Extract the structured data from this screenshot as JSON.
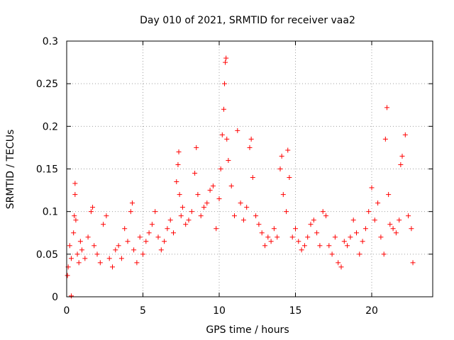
{
  "chart_data": {
    "type": "scatter",
    "title": "Day 010 of 2021, SRMTID for receiver vaa2",
    "xlabel": "GPS time / hours",
    "ylabel": "SRMTID / TECUs",
    "xlim": [
      0,
      24
    ],
    "ylim": [
      0,
      0.3
    ],
    "grid": true,
    "x_ticks": [
      0,
      5,
      10,
      15,
      20
    ],
    "x_tick_labels": [
      "0",
      "5",
      "10",
      "15",
      "20"
    ],
    "y_ticks": [
      0,
      0.05,
      0.1,
      0.15,
      0.2,
      0.25,
      0.3
    ],
    "y_tick_labels": [
      "0",
      "0.05",
      "0.1",
      "0.15",
      "0.2",
      "0.25",
      "0.3"
    ],
    "marker": "plus",
    "color": "#ff0000",
    "series": [
      {
        "name": "SRMTID",
        "points": [
          [
            0.05,
            0.025
          ],
          [
            0.1,
            0.035
          ],
          [
            0.2,
            0.06
          ],
          [
            0.3,
            0.045
          ],
          [
            0.3,
            0.001
          ],
          [
            0.45,
            0.075
          ],
          [
            0.5,
            0.095
          ],
          [
            0.55,
            0.12
          ],
          [
            0.55,
            0.133
          ],
          [
            0.6,
            0.09
          ],
          [
            0.7,
            0.05
          ],
          [
            0.8,
            0.04
          ],
          [
            0.9,
            0.065
          ],
          [
            1.0,
            0.055
          ],
          [
            1.2,
            0.045
          ],
          [
            1.4,
            0.07
          ],
          [
            1.6,
            0.1
          ],
          [
            1.7,
            0.105
          ],
          [
            1.8,
            0.06
          ],
          [
            2.0,
            0.05
          ],
          [
            2.2,
            0.04
          ],
          [
            2.4,
            0.085
          ],
          [
            2.6,
            0.095
          ],
          [
            2.8,
            0.045
          ],
          [
            3.0,
            0.035
          ],
          [
            3.2,
            0.055
          ],
          [
            3.4,
            0.06
          ],
          [
            3.6,
            0.045
          ],
          [
            3.8,
            0.08
          ],
          [
            4.0,
            0.065
          ],
          [
            4.2,
            0.1
          ],
          [
            4.3,
            0.11
          ],
          [
            4.4,
            0.055
          ],
          [
            4.6,
            0.04
          ],
          [
            4.8,
            0.07
          ],
          [
            5.0,
            0.05
          ],
          [
            5.2,
            0.065
          ],
          [
            5.4,
            0.075
          ],
          [
            5.6,
            0.085
          ],
          [
            5.8,
            0.1
          ],
          [
            6.0,
            0.07
          ],
          [
            6.2,
            0.055
          ],
          [
            6.4,
            0.065
          ],
          [
            6.6,
            0.08
          ],
          [
            6.8,
            0.09
          ],
          [
            7.0,
            0.075
          ],
          [
            7.2,
            0.135
          ],
          [
            7.3,
            0.155
          ],
          [
            7.35,
            0.17
          ],
          [
            7.4,
            0.12
          ],
          [
            7.5,
            0.095
          ],
          [
            7.6,
            0.105
          ],
          [
            7.8,
            0.085
          ],
          [
            8.0,
            0.09
          ],
          [
            8.2,
            0.1
          ],
          [
            8.4,
            0.145
          ],
          [
            8.5,
            0.175
          ],
          [
            8.6,
            0.12
          ],
          [
            8.8,
            0.095
          ],
          [
            9.0,
            0.105
          ],
          [
            9.2,
            0.11
          ],
          [
            9.4,
            0.125
          ],
          [
            9.6,
            0.13
          ],
          [
            9.8,
            0.08
          ],
          [
            10.0,
            0.115
          ],
          [
            10.1,
            0.15
          ],
          [
            10.2,
            0.19
          ],
          [
            10.3,
            0.22
          ],
          [
            10.35,
            0.25
          ],
          [
            10.4,
            0.275
          ],
          [
            10.45,
            0.28
          ],
          [
            10.5,
            0.185
          ],
          [
            10.6,
            0.16
          ],
          [
            10.8,
            0.13
          ],
          [
            11.0,
            0.095
          ],
          [
            11.2,
            0.195
          ],
          [
            11.4,
            0.11
          ],
          [
            11.6,
            0.09
          ],
          [
            11.8,
            0.105
          ],
          [
            12.0,
            0.175
          ],
          [
            12.1,
            0.185
          ],
          [
            12.2,
            0.14
          ],
          [
            12.4,
            0.095
          ],
          [
            12.6,
            0.085
          ],
          [
            12.8,
            0.075
          ],
          [
            13.0,
            0.06
          ],
          [
            13.2,
            0.07
          ],
          [
            13.4,
            0.065
          ],
          [
            13.6,
            0.08
          ],
          [
            13.8,
            0.07
          ],
          [
            14.0,
            0.15
          ],
          [
            14.1,
            0.165
          ],
          [
            14.2,
            0.12
          ],
          [
            14.4,
            0.1
          ],
          [
            14.5,
            0.172
          ],
          [
            14.6,
            0.14
          ],
          [
            14.8,
            0.07
          ],
          [
            15.0,
            0.08
          ],
          [
            15.2,
            0.065
          ],
          [
            15.4,
            0.055
          ],
          [
            15.6,
            0.06
          ],
          [
            15.8,
            0.07
          ],
          [
            16.0,
            0.085
          ],
          [
            16.2,
            0.09
          ],
          [
            16.4,
            0.075
          ],
          [
            16.6,
            0.06
          ],
          [
            16.8,
            0.1
          ],
          [
            17.0,
            0.095
          ],
          [
            17.2,
            0.06
          ],
          [
            17.4,
            0.05
          ],
          [
            17.6,
            0.07
          ],
          [
            17.8,
            0.04
          ],
          [
            18.0,
            0.035
          ],
          [
            18.2,
            0.065
          ],
          [
            18.4,
            0.06
          ],
          [
            18.6,
            0.07
          ],
          [
            18.8,
            0.09
          ],
          [
            19.0,
            0.075
          ],
          [
            19.2,
            0.05
          ],
          [
            19.4,
            0.065
          ],
          [
            19.6,
            0.08
          ],
          [
            19.8,
            0.1
          ],
          [
            20.0,
            0.128
          ],
          [
            20.2,
            0.09
          ],
          [
            20.4,
            0.11
          ],
          [
            20.6,
            0.07
          ],
          [
            20.8,
            0.05
          ],
          [
            20.9,
            0.185
          ],
          [
            21.0,
            0.222
          ],
          [
            21.1,
            0.12
          ],
          [
            21.2,
            0.085
          ],
          [
            21.4,
            0.08
          ],
          [
            21.6,
            0.075
          ],
          [
            21.8,
            0.09
          ],
          [
            21.9,
            0.155
          ],
          [
            22.0,
            0.165
          ],
          [
            22.2,
            0.19
          ],
          [
            22.4,
            0.095
          ],
          [
            22.6,
            0.08
          ],
          [
            22.7,
            0.04
          ]
        ]
      }
    ]
  }
}
